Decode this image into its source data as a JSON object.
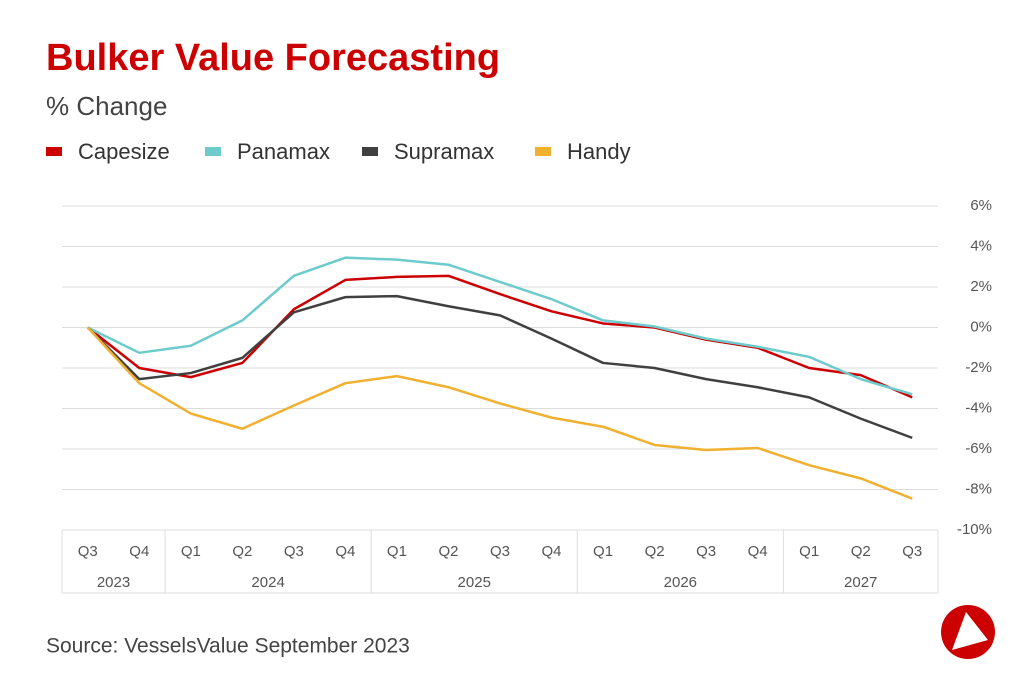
{
  "chart_data": {
    "type": "line",
    "title": "Bulker Value Forecasting",
    "subtitle": "% Change",
    "source": "Source: VesselsValue September 2023",
    "categories": [
      "Q3",
      "Q4",
      "Q1",
      "Q2",
      "Q3",
      "Q4",
      "Q1",
      "Q2",
      "Q3",
      "Q4",
      "Q1",
      "Q2",
      "Q3",
      "Q4",
      "Q1",
      "Q2",
      "Q3"
    ],
    "x_groups": [
      {
        "label": "2023",
        "count": 2
      },
      {
        "label": "2024",
        "count": 4
      },
      {
        "label": "2025",
        "count": 4
      },
      {
        "label": "2026",
        "count": 4
      },
      {
        "label": "2027",
        "count": 3
      }
    ],
    "series": [
      {
        "name": "Capesize",
        "color": "#cc0000",
        "values": [
          0,
          -2.0,
          -2.45,
          -1.75,
          0.9,
          2.35,
          2.5,
          2.55,
          1.65,
          0.8,
          0.2,
          0,
          -0.6,
          -1.0,
          -2.0,
          -2.35,
          -3.45
        ]
      },
      {
        "name": "Panamax",
        "color": "#6ecbcb",
        "values": [
          0,
          -1.25,
          -0.9,
          0.35,
          2.55,
          3.45,
          3.35,
          3.1,
          2.25,
          1.4,
          0.35,
          0.05,
          -0.55,
          -0.95,
          -1.45,
          -2.55,
          -3.3
        ]
      },
      {
        "name": "Supramax",
        "color": "#404040",
        "values": [
          0,
          -2.55,
          -2.25,
          -1.5,
          0.75,
          1.5,
          1.55,
          1.05,
          0.6,
          -0.55,
          -1.75,
          -2.0,
          -2.55,
          -2.95,
          -3.45,
          -4.5,
          -5.45
        ]
      },
      {
        "name": "Handy",
        "color": "#f0b030",
        "values": [
          0,
          -2.75,
          -4.25,
          -5.0,
          -3.85,
          -2.75,
          -2.4,
          -2.95,
          -3.75,
          -4.45,
          -4.9,
          -5.8,
          -6.05,
          -5.95,
          -6.8,
          -7.45,
          -8.45
        ]
      }
    ],
    "ylim": [
      -10,
      6
    ],
    "yticks": [
      {
        "value": 6,
        "label": "6%"
      },
      {
        "value": 4,
        "label": "4%"
      },
      {
        "value": 2,
        "label": "2%"
      },
      {
        "value": 0,
        "label": "0%"
      },
      {
        "value": -2,
        "label": "-2%"
      },
      {
        "value": -4,
        "label": "-4%"
      },
      {
        "value": -6,
        "label": "-6%"
      },
      {
        "value": -8,
        "label": "-8%"
      },
      {
        "value": -10,
        "label": "-10%"
      }
    ],
    "grid": true,
    "legend": "top"
  }
}
